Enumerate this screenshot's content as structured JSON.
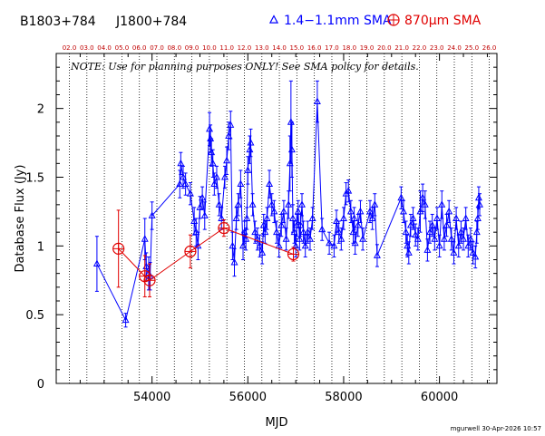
{
  "chart_data": {
    "type": "scatter",
    "source_name": "B1803+784",
    "alt_name": "J1800+784",
    "note": "NOTE: Use for planning purposes ONLY!  See SMA policy for details.",
    "xlabel": "MJD",
    "ylabel": "Database Flux (Jy)",
    "xlim": [
      52000,
      61200
    ],
    "ylim": [
      0,
      2.4
    ],
    "x_ticks": [
      54000,
      56000,
      58000,
      60000
    ],
    "x_tick_labels": [
      "54000",
      "56000",
      "58000",
      "60000"
    ],
    "y_ticks": [
      0,
      0.5,
      1,
      1.5,
      2
    ],
    "y_tick_labels": [
      "0",
      "0.5",
      "1",
      "1.5",
      "2"
    ],
    "year_labels": [
      "02.0",
      "03.0",
      "04.0",
      "05.0",
      "06.0",
      "07.0",
      "08.0",
      "09.0",
      "10.0",
      "11.0",
      "12.0",
      "13.0",
      "14.0",
      "15.0",
      "16.0",
      "17.0",
      "18.0",
      "19.0",
      "20.0",
      "21.0",
      "22.0",
      "23.0",
      "24.0",
      "25.0",
      "26.0"
    ],
    "year_mjd": [
      52275,
      52640,
      53005,
      53371,
      53736,
      54101,
      54466,
      54832,
      55197,
      55562,
      55927,
      56293,
      56658,
      57023,
      57388,
      57754,
      58119,
      58484,
      58849,
      59215,
      59580,
      59945,
      60310,
      60676,
      61041
    ],
    "grid": false,
    "legend_position": "top",
    "footer": "mgurwell 30-Apr-2026 10:57",
    "colors": {
      "series_1mm": "#0000ff",
      "series_870um": "#e00000",
      "year_text": "#c00000"
    },
    "series": [
      {
        "name": "1.4−1.1mm SMA",
        "marker": "triangle",
        "color": "#0000ff",
        "x": [
          52850,
          53450,
          53850,
          53880,
          53930,
          53960,
          54000,
          54580,
          54600,
          54650,
          54700,
          54800,
          54880,
          54920,
          54960,
          55000,
          55050,
          55100,
          55200,
          55220,
          55240,
          55270,
          55300,
          55350,
          55400,
          55450,
          55520,
          55560,
          55600,
          55640,
          55680,
          55720,
          55760,
          55800,
          55850,
          55900,
          55930,
          55960,
          55980,
          56000,
          56040,
          56060,
          56100,
          56150,
          56200,
          56250,
          56300,
          56330,
          56360,
          56400,
          56450,
          56500,
          56550,
          56600,
          56650,
          56700,
          56750,
          56800,
          56850,
          56880,
          56900,
          56920,
          56940,
          56970,
          57000,
          57020,
          57050,
          57080,
          57100,
          57130,
          57160,
          57200,
          57250,
          57300,
          57350,
          57450,
          57550,
          57700,
          57800,
          57850,
          57900,
          57950,
          58000,
          58050,
          58100,
          58150,
          58200,
          58220,
          58240,
          58300,
          58350,
          58400,
          58550,
          58600,
          58650,
          58700,
          59200,
          59250,
          59300,
          59330,
          59360,
          59400,
          59450,
          59500,
          59550,
          59600,
          59650,
          59700,
          59750,
          59800,
          59850,
          59900,
          59950,
          60000,
          60050,
          60100,
          60150,
          60200,
          60250,
          60300,
          60350,
          60400,
          60450,
          60500,
          60550,
          60600,
          60650,
          60700,
          60750,
          60780,
          60800,
          60820,
          60840
        ],
        "y": [
          0.87,
          0.46,
          1.05,
          0.85,
          0.8,
          0.78,
          1.22,
          1.45,
          1.6,
          1.5,
          1.45,
          1.38,
          1.18,
          1.1,
          1.0,
          1.28,
          1.35,
          1.22,
          1.85,
          1.78,
          1.68,
          1.6,
          1.45,
          1.5,
          1.3,
          1.2,
          1.5,
          1.62,
          1.8,
          1.88,
          1.0,
          0.88,
          1.2,
          1.3,
          1.45,
          1.0,
          1.1,
          1.05,
          1.2,
          1.55,
          1.7,
          1.75,
          1.3,
          1.1,
          1.05,
          1.0,
          0.95,
          1.15,
          1.1,
          1.2,
          1.45,
          1.3,
          1.25,
          1.1,
          1.0,
          1.15,
          1.25,
          1.05,
          1.3,
          1.6,
          1.9,
          1.7,
          1.2,
          1.1,
          1.0,
          1.15,
          1.25,
          1.05,
          1.15,
          1.3,
          1.1,
          1.0,
          1.1,
          1.05,
          1.2,
          2.05,
          1.12,
          1.02,
          1.0,
          1.18,
          1.1,
          1.05,
          1.2,
          1.38,
          1.4,
          1.25,
          1.1,
          1.2,
          1.02,
          1.15,
          1.25,
          1.05,
          1.25,
          1.2,
          1.3,
          0.93,
          1.35,
          1.25,
          1.1,
          1.0,
          0.95,
          1.15,
          1.2,
          1.08,
          1.05,
          1.25,
          1.35,
          1.3,
          0.97,
          1.1,
          1.15,
          1.05,
          1.2,
          1.0,
          1.3,
          1.05,
          1.15,
          1.25,
          1.05,
          0.95,
          1.2,
          1.0,
          1.1,
          1.05,
          1.2,
          1.0,
          1.05,
          0.95,
          0.92,
          1.1,
          1.2,
          1.35,
          1.3
        ],
        "yerr": [
          0.2,
          0.05,
          0.15,
          0.1,
          0.12,
          0.1,
          0.1,
          0.1,
          0.08,
          0.08,
          0.08,
          0.08,
          0.1,
          0.1,
          0.1,
          0.08,
          0.08,
          0.1,
          0.12,
          0.1,
          0.1,
          0.1,
          0.08,
          0.08,
          0.08,
          0.08,
          0.08,
          0.1,
          0.1,
          0.1,
          0.1,
          0.1,
          0.08,
          0.08,
          0.1,
          0.1,
          0.08,
          0.08,
          0.08,
          0.1,
          0.1,
          0.1,
          0.08,
          0.08,
          0.08,
          0.08,
          0.08,
          0.08,
          0.08,
          0.08,
          0.1,
          0.08,
          0.08,
          0.08,
          0.08,
          0.08,
          0.08,
          0.08,
          0.1,
          0.2,
          0.3,
          0.2,
          0.1,
          0.08,
          0.08,
          0.08,
          0.08,
          0.08,
          0.08,
          0.08,
          0.08,
          0.08,
          0.08,
          0.08,
          0.08,
          0.15,
          0.08,
          0.08,
          0.08,
          0.08,
          0.08,
          0.08,
          0.08,
          0.08,
          0.08,
          0.08,
          0.08,
          0.08,
          0.08,
          0.08,
          0.08,
          0.08,
          0.08,
          0.08,
          0.08,
          0.08,
          0.08,
          0.08,
          0.08,
          0.08,
          0.08,
          0.08,
          0.08,
          0.08,
          0.08,
          0.15,
          0.1,
          0.1,
          0.08,
          0.08,
          0.08,
          0.08,
          0.08,
          0.08,
          0.1,
          0.08,
          0.08,
          0.08,
          0.08,
          0.08,
          0.08,
          0.08,
          0.08,
          0.08,
          0.08,
          0.08,
          0.08,
          0.08,
          0.08,
          0.08,
          0.08,
          0.08,
          0.08
        ]
      },
      {
        "name": "870μm SMA",
        "marker": "circle-plus",
        "color": "#e00000",
        "x": [
          53300,
          53850,
          53950,
          54800,
          55500,
          56950
        ],
        "y": [
          0.98,
          0.78,
          0.75,
          0.96,
          1.13,
          0.94
        ],
        "yerr": [
          0.28,
          0.15,
          0.12,
          0.12,
          0.06,
          0.05
        ]
      }
    ]
  }
}
